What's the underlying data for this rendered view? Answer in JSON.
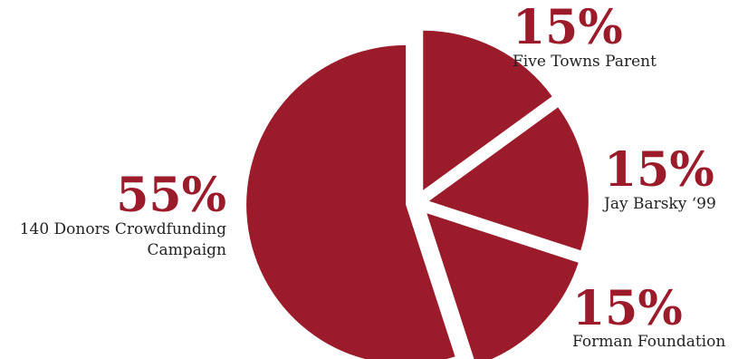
{
  "chart_data": {
    "type": "pie",
    "slices": [
      {
        "percent_label": "15%",
        "value": 15,
        "label_lines": [
          "Five Towns Parent"
        ]
      },
      {
        "percent_label": "15%",
        "value": 15,
        "label_lines": [
          "Jay Barsky ‘99"
        ]
      },
      {
        "percent_label": "15%",
        "value": 15,
        "label_lines": [
          "Forman Foundation"
        ]
      },
      {
        "percent_label": "55%",
        "value": 55,
        "label_lines": [
          "140 Donors Crowdfunding",
          "Campaign"
        ]
      }
    ],
    "colors": {
      "slice": "#9b1b2a",
      "percent": "#9b1b2a",
      "label": "#222222"
    },
    "exploded": true
  }
}
